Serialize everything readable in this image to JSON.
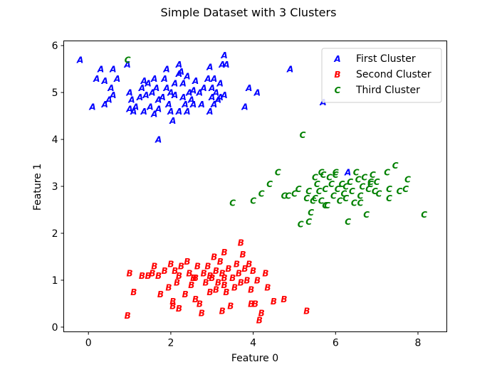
{
  "chart_data": {
    "type": "scatter",
    "title": "Simple Dataset with 3 Clusters",
    "xlabel": "Feature 0",
    "ylabel": "Feature 1",
    "xlim": [
      -0.6,
      8.7
    ],
    "ylim": [
      -0.1,
      6.1
    ],
    "xticks": [
      0,
      2,
      4,
      6,
      8
    ],
    "yticks": [
      0,
      1,
      2,
      3,
      4,
      5,
      6
    ],
    "grid": false,
    "legend_position": "top-right",
    "series": [
      {
        "name": "First Cluster",
        "marker": "A",
        "color": "#0000ff",
        "points": [
          [
            -0.2,
            5.7
          ],
          [
            0.3,
            5.5
          ],
          [
            0.2,
            5.3
          ],
          [
            0.4,
            5.25
          ],
          [
            0.6,
            5.5
          ],
          [
            0.7,
            5.3
          ],
          [
            0.55,
            5.1
          ],
          [
            0.6,
            4.95
          ],
          [
            0.5,
            4.85
          ],
          [
            0.4,
            4.75
          ],
          [
            0.1,
            4.7
          ],
          [
            0.95,
            5.6
          ],
          [
            1.0,
            5.0
          ],
          [
            1.05,
            4.85
          ],
          [
            1.0,
            4.65
          ],
          [
            1.15,
            4.7
          ],
          [
            1.25,
            4.9
          ],
          [
            1.3,
            5.1
          ],
          [
            1.35,
            5.25
          ],
          [
            1.45,
            5.2
          ],
          [
            1.4,
            4.95
          ],
          [
            1.35,
            4.6
          ],
          [
            1.5,
            4.7
          ],
          [
            1.55,
            5.0
          ],
          [
            1.6,
            5.3
          ],
          [
            1.65,
            5.1
          ],
          [
            1.7,
            4.85
          ],
          [
            1.7,
            4.65
          ],
          [
            1.8,
            4.9
          ],
          [
            1.9,
            5.1
          ],
          [
            1.85,
            5.3
          ],
          [
            1.9,
            5.5
          ],
          [
            1.95,
            4.75
          ],
          [
            2.0,
            4.6
          ],
          [
            2.05,
            4.4
          ],
          [
            1.7,
            4.0
          ],
          [
            2.0,
            5.0
          ],
          [
            2.1,
            5.2
          ],
          [
            2.2,
            5.4
          ],
          [
            2.2,
            5.6
          ],
          [
            2.25,
            5.45
          ],
          [
            2.3,
            5.2
          ],
          [
            2.3,
            4.9
          ],
          [
            2.35,
            4.75
          ],
          [
            2.4,
            4.6
          ],
          [
            2.45,
            5.0
          ],
          [
            2.5,
            4.85
          ],
          [
            2.55,
            5.05
          ],
          [
            2.6,
            5.25
          ],
          [
            2.7,
            5.0
          ],
          [
            2.75,
            4.75
          ],
          [
            2.8,
            5.1
          ],
          [
            2.9,
            5.3
          ],
          [
            2.95,
            5.55
          ],
          [
            3.0,
            5.1
          ],
          [
            3.0,
            4.9
          ],
          [
            3.05,
            4.75
          ],
          [
            2.95,
            4.6
          ],
          [
            3.1,
            5.0
          ],
          [
            3.15,
            4.85
          ],
          [
            3.2,
            5.2
          ],
          [
            3.25,
            5.6
          ],
          [
            3.3,
            5.8
          ],
          [
            3.35,
            5.6
          ],
          [
            3.2,
            4.9
          ],
          [
            3.3,
            4.95
          ],
          [
            3.8,
            4.7
          ],
          [
            3.9,
            5.1
          ],
          [
            4.1,
            5.0
          ],
          [
            4.9,
            5.5
          ],
          [
            5.7,
            4.8
          ],
          [
            3.05,
            5.3
          ],
          [
            1.6,
            4.55
          ],
          [
            1.1,
            4.6
          ],
          [
            2.55,
            4.75
          ],
          [
            2.2,
            4.6
          ],
          [
            2.1,
            4.95
          ],
          [
            2.4,
            5.35
          ],
          [
            6.3,
            3.3
          ]
        ]
      },
      {
        "name": "Second Cluster",
        "marker": "B",
        "color": "#ff0000",
        "points": [
          [
            0.95,
            0.25
          ],
          [
            1.0,
            1.15
          ],
          [
            1.1,
            0.75
          ],
          [
            1.45,
            1.1
          ],
          [
            1.55,
            1.15
          ],
          [
            1.6,
            1.3
          ],
          [
            1.7,
            1.1
          ],
          [
            1.75,
            0.7
          ],
          [
            1.85,
            1.2
          ],
          [
            1.95,
            0.85
          ],
          [
            2.0,
            1.35
          ],
          [
            2.05,
            0.45
          ],
          [
            2.1,
            1.2
          ],
          [
            2.15,
            0.95
          ],
          [
            2.2,
            1.1
          ],
          [
            2.2,
            0.4
          ],
          [
            2.25,
            1.3
          ],
          [
            2.35,
            0.7
          ],
          [
            2.4,
            1.4
          ],
          [
            2.45,
            1.15
          ],
          [
            2.5,
            0.9
          ],
          [
            2.6,
            1.05
          ],
          [
            2.65,
            1.3
          ],
          [
            2.7,
            0.5
          ],
          [
            2.75,
            0.3
          ],
          [
            2.8,
            1.15
          ],
          [
            2.85,
            0.95
          ],
          [
            2.9,
            1.3
          ],
          [
            2.95,
            0.75
          ],
          [
            3.0,
            1.05
          ],
          [
            3.05,
            1.5
          ],
          [
            3.1,
            1.2
          ],
          [
            3.1,
            0.8
          ],
          [
            3.15,
            0.95
          ],
          [
            3.2,
            1.4
          ],
          [
            3.25,
            1.15
          ],
          [
            3.3,
            1.05
          ],
          [
            3.3,
            1.6
          ],
          [
            3.35,
            0.75
          ],
          [
            3.4,
            1.25
          ],
          [
            3.45,
            0.45
          ],
          [
            3.5,
            1.05
          ],
          [
            3.55,
            0.85
          ],
          [
            3.6,
            1.35
          ],
          [
            3.65,
            1.15
          ],
          [
            3.7,
            0.95
          ],
          [
            3.75,
            1.55
          ],
          [
            3.8,
            1.25
          ],
          [
            3.85,
            1.0
          ],
          [
            3.9,
            1.35
          ],
          [
            3.95,
            0.8
          ],
          [
            4.0,
            1.2
          ],
          [
            4.05,
            0.5
          ],
          [
            4.1,
            1.0
          ],
          [
            4.2,
            0.3
          ],
          [
            4.3,
            1.15
          ],
          [
            4.35,
            0.85
          ],
          [
            4.5,
            0.55
          ],
          [
            4.75,
            0.6
          ],
          [
            5.3,
            0.35
          ],
          [
            3.7,
            1.8
          ],
          [
            3.3,
            0.9
          ],
          [
            2.55,
            1.05
          ],
          [
            1.3,
            1.1
          ],
          [
            2.95,
            1.1
          ],
          [
            3.95,
            0.5
          ],
          [
            2.6,
            0.6
          ],
          [
            3.25,
            0.35
          ],
          [
            2.05,
            0.55
          ],
          [
            4.15,
            0.15
          ]
        ]
      },
      {
        "name": "Third Cluster",
        "marker": "C",
        "color": "#008000",
        "points": [
          [
            0.95,
            5.7
          ],
          [
            3.5,
            2.65
          ],
          [
            4.0,
            2.7
          ],
          [
            4.2,
            2.85
          ],
          [
            4.4,
            3.05
          ],
          [
            4.6,
            3.3
          ],
          [
            4.75,
            2.8
          ],
          [
            4.85,
            2.8
          ],
          [
            5.0,
            2.85
          ],
          [
            5.1,
            2.95
          ],
          [
            5.15,
            2.2
          ],
          [
            5.2,
            4.1
          ],
          [
            5.3,
            2.75
          ],
          [
            5.35,
            2.25
          ],
          [
            5.4,
            2.45
          ],
          [
            5.45,
            2.7
          ],
          [
            5.5,
            3.2
          ],
          [
            5.55,
            3.05
          ],
          [
            5.6,
            2.9
          ],
          [
            5.65,
            2.7
          ],
          [
            5.7,
            3.25
          ],
          [
            5.75,
            2.95
          ],
          [
            5.8,
            2.6
          ],
          [
            5.85,
            3.2
          ],
          [
            5.9,
            3.05
          ],
          [
            5.95,
            2.8
          ],
          [
            6.0,
            3.25
          ],
          [
            6.05,
            2.95
          ],
          [
            6.1,
            2.7
          ],
          [
            6.15,
            3.05
          ],
          [
            6.2,
            2.85
          ],
          [
            6.25,
            2.75
          ],
          [
            6.3,
            2.25
          ],
          [
            6.35,
            3.1
          ],
          [
            6.4,
            2.9
          ],
          [
            6.45,
            2.65
          ],
          [
            6.5,
            3.3
          ],
          [
            6.55,
            3.15
          ],
          [
            6.6,
            2.8
          ],
          [
            6.65,
            3.0
          ],
          [
            6.7,
            3.2
          ],
          [
            6.75,
            2.4
          ],
          [
            6.8,
            2.95
          ],
          [
            6.85,
            3.1
          ],
          [
            6.9,
            3.25
          ],
          [
            6.95,
            2.9
          ],
          [
            7.0,
            3.1
          ],
          [
            7.05,
            2.85
          ],
          [
            7.25,
            3.3
          ],
          [
            7.3,
            2.95
          ],
          [
            7.3,
            2.75
          ],
          [
            7.45,
            3.45
          ],
          [
            7.55,
            2.9
          ],
          [
            7.7,
            2.95
          ],
          [
            7.75,
            3.15
          ],
          [
            8.15,
            2.4
          ],
          [
            5.65,
            3.3
          ],
          [
            6.0,
            3.3
          ],
          [
            5.35,
            2.9
          ],
          [
            5.75,
            2.6
          ],
          [
            6.25,
            3.0
          ],
          [
            6.6,
            2.65
          ],
          [
            5.5,
            2.75
          ],
          [
            6.85,
            3.05
          ]
        ]
      }
    ]
  }
}
